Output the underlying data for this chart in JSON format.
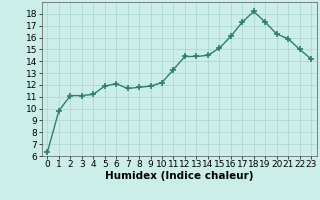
{
  "x": [
    0,
    1,
    2,
    3,
    4,
    5,
    6,
    7,
    8,
    9,
    10,
    11,
    12,
    13,
    14,
    15,
    16,
    17,
    18,
    19,
    20,
    21,
    22,
    23
  ],
  "y": [
    6.3,
    9.8,
    11.1,
    11.1,
    11.2,
    11.9,
    12.1,
    11.7,
    11.8,
    11.9,
    12.2,
    13.3,
    14.4,
    14.4,
    14.5,
    15.1,
    16.1,
    17.3,
    18.2,
    17.3,
    16.3,
    15.9,
    15.0,
    14.2
  ],
  "line_color": "#2e7d6e",
  "marker": "+",
  "marker_size": 4,
  "marker_lw": 1.2,
  "linewidth": 1.0,
  "xlabel": "Humidex (Indice chaleur)",
  "ylim": [
    6,
    19
  ],
  "xlim": [
    -0.5,
    23.5
  ],
  "yticks": [
    6,
    7,
    8,
    9,
    10,
    11,
    12,
    13,
    14,
    15,
    16,
    17,
    18
  ],
  "xticks": [
    0,
    1,
    2,
    3,
    4,
    5,
    6,
    7,
    8,
    9,
    10,
    11,
    12,
    13,
    14,
    15,
    16,
    17,
    18,
    19,
    20,
    21,
    22,
    23
  ],
  "bg_color": "#cceee8",
  "grid_color": "#aad4ce",
  "xlabel_fontsize": 7.5,
  "tick_fontsize": 6.5
}
